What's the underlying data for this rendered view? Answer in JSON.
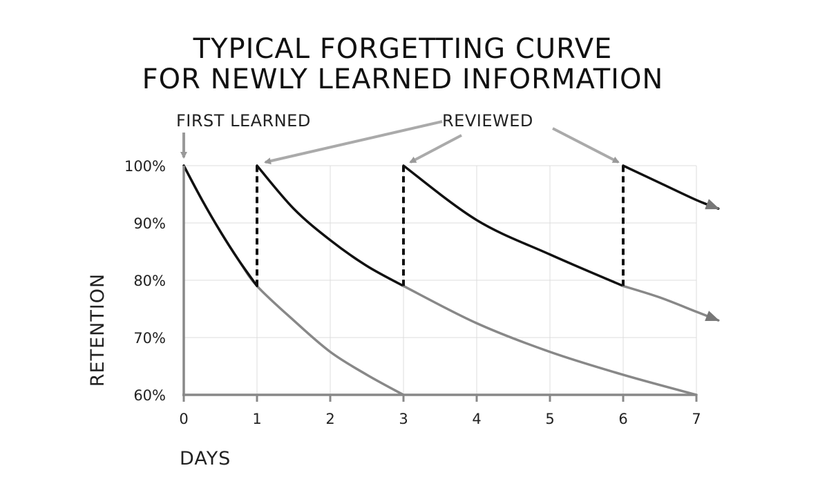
{
  "title_lines": [
    "TYPICAL FORGETTING CURVE",
    "FOR NEWLY LEARNED INFORMATION"
  ],
  "annotations": {
    "first_learned": "FIRST LEARNED",
    "reviewed": "REVIEWED"
  },
  "colors": {
    "reviewed_curve": "#111111",
    "decay_curve": "#888888",
    "arrows": "#999999",
    "axis": "#888888"
  },
  "chart_data": {
    "type": "line",
    "xlabel": "DAYS",
    "ylabel": "RETENTION",
    "xlim": [
      0,
      7
    ],
    "ylim": [
      60,
      100
    ],
    "x_ticks": [
      "0",
      "1",
      "2",
      "3",
      "4",
      "5",
      "6",
      "7"
    ],
    "y_ticks": [
      "60%",
      "70%",
      "80%",
      "90%",
      "100%"
    ],
    "grid": true,
    "review_days": [
      1,
      3,
      6
    ],
    "series": [
      {
        "style": "gray",
        "x": [
          0,
          0.25,
          0.5,
          0.75,
          1,
          1.5,
          2,
          2.5,
          3
        ],
        "y": [
          100,
          94,
          88.5,
          83.5,
          79,
          73,
          67.5,
          63.5,
          60
        ]
      },
      {
        "style": "black",
        "x": [
          0,
          0.25,
          0.5,
          0.75,
          1
        ],
        "y": [
          100,
          94,
          88.5,
          83.5,
          79
        ]
      },
      {
        "style": "black",
        "x": [
          1,
          1.5,
          2,
          2.5,
          3
        ],
        "y": [
          100,
          92.5,
          87,
          82.5,
          79
        ]
      },
      {
        "style": "gray",
        "x": [
          3,
          4,
          5,
          6,
          7
        ],
        "y": [
          79,
          72.5,
          67.5,
          63.5,
          60
        ]
      },
      {
        "style": "black",
        "x": [
          3,
          4,
          5,
          6
        ],
        "y": [
          100,
          90.5,
          84.5,
          79
        ]
      },
      {
        "style": "gray",
        "x": [
          6,
          6.5,
          7,
          7.3
        ],
        "y": [
          79,
          77,
          74.5,
          73
        ]
      },
      {
        "style": "black",
        "x": [
          6,
          6.5,
          7,
          7.3
        ],
        "y": [
          100,
          97,
          94,
          92.5
        ]
      }
    ],
    "review_jumps": [
      {
        "x": 1,
        "from": 79,
        "to": 100
      },
      {
        "x": 3,
        "from": 79,
        "to": 100
      },
      {
        "x": 6,
        "from": 79,
        "to": 100
      }
    ]
  }
}
